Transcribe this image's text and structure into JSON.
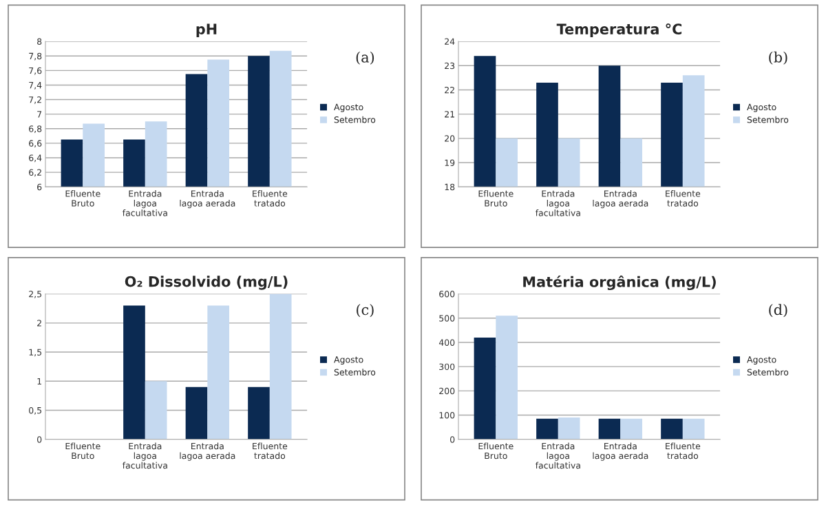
{
  "chart_data": [
    {
      "type": "bar",
      "title": "pH",
      "annotations": [
        "(a)"
      ],
      "categories": [
        "Efluente\nBruto",
        "Entrada\nlagoa\nfacultativa",
        "Entrada\nlagoa aerada",
        "Efluente\ntratado"
      ],
      "series": [
        {
          "name": "Agosto",
          "color": "#0b2a52",
          "values": [
            6.65,
            6.65,
            7.55,
            7.8
          ]
        },
        {
          "name": "Setembro",
          "color": "#c5d9f0",
          "values": [
            6.87,
            6.9,
            7.75,
            7.87
          ]
        }
      ],
      "ylim": [
        6,
        8
      ],
      "yticks": [
        6,
        {
          "value": 6.2,
          "label": "6,2"
        },
        {
          "value": 6.4,
          "label": "6,4"
        },
        {
          "value": 6.6,
          "label": "6,6"
        },
        {
          "value": 6.8,
          "label": "6,8"
        },
        7,
        {
          "value": 7.2,
          "label": "7,2"
        },
        {
          "value": 7.4,
          "label": "7,4"
        },
        {
          "value": 7.6,
          "label": "7,6"
        },
        {
          "value": 7.8,
          "label": "7,8"
        },
        8
      ],
      "grid": "y",
      "legend": "right"
    },
    {
      "type": "bar",
      "title": "Temperatura °C",
      "annotations": [
        "(b)"
      ],
      "categories": [
        "Efluente\nBruto",
        "Entrada\nlagoa\nfacultativa",
        "Entrada\nlagoa aerada",
        "Efluente\ntratado"
      ],
      "series": [
        {
          "name": "Agosto",
          "color": "#0b2a52",
          "values": [
            23.4,
            22.3,
            23.0,
            22.3
          ]
        },
        {
          "name": "Setembro",
          "color": "#c5d9f0",
          "values": [
            20.0,
            20.0,
            20.0,
            22.6
          ]
        }
      ],
      "ylim": [
        18,
        24
      ],
      "yticks": [
        18,
        19,
        20,
        21,
        22,
        23,
        24
      ],
      "grid": "y",
      "legend": "right"
    },
    {
      "type": "bar",
      "title": "O₂ Dissolvido (mg/L)",
      "annotations": [
        "(c)"
      ],
      "categories": [
        "Efluente\nBruto",
        "Entrada\nlagoa\nfacultativa",
        "Entrada\nlagoa aerada",
        "Efluente\ntratado"
      ],
      "series": [
        {
          "name": "Agosto",
          "color": "#0b2a52",
          "values": [
            0,
            2.3,
            0.9,
            0.9
          ]
        },
        {
          "name": "Setembro",
          "color": "#c5d9f0",
          "values": [
            0,
            1.0,
            2.3,
            2.5
          ]
        }
      ],
      "ylim": [
        0,
        2.5
      ],
      "yticks": [
        0,
        {
          "value": 0.5,
          "label": "0,5"
        },
        1,
        {
          "value": 1.5,
          "label": "1,5"
        },
        2,
        {
          "value": 2.5,
          "label": "2,5"
        }
      ],
      "grid": "y",
      "legend": "right"
    },
    {
      "type": "bar",
      "title": "Matéria orgânica (mg/L)",
      "annotations": [
        "(d)"
      ],
      "categories": [
        "Efluente\nBruto",
        "Entrada\nlagoa\nfacultativa",
        "Entrada\nlagoa aerada",
        "Efluente\ntratado"
      ],
      "series": [
        {
          "name": "Agosto",
          "color": "#0b2a52",
          "values": [
            420,
            85,
            85,
            85
          ]
        },
        {
          "name": "Setembro",
          "color": "#c5d9f0",
          "values": [
            510,
            90,
            85,
            85
          ]
        }
      ],
      "ylim": [
        0,
        600
      ],
      "yticks": [
        0,
        100,
        200,
        300,
        400,
        500,
        600
      ],
      "grid": "y",
      "legend": "right"
    }
  ]
}
